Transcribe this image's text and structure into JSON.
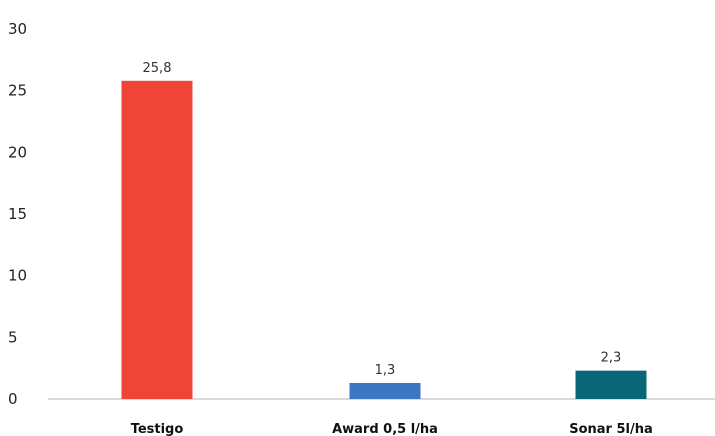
{
  "chart_data": {
    "type": "bar",
    "categories": [
      "Testigo",
      "Award 0,5 l/ha",
      "Sonar 5l/ha"
    ],
    "values": [
      25.8,
      1.3,
      2.3
    ],
    "value_labels": [
      "25,8",
      "1,3",
      "2,3"
    ],
    "colors": [
      "#ef4536",
      "#3d76c2",
      "#086676"
    ],
    "title": "",
    "xlabel": "",
    "ylabel": "",
    "ylim": [
      0,
      30
    ],
    "yticks": [
      0,
      5,
      10,
      15,
      20,
      25,
      30
    ],
    "grid": false,
    "legend": "none"
  }
}
